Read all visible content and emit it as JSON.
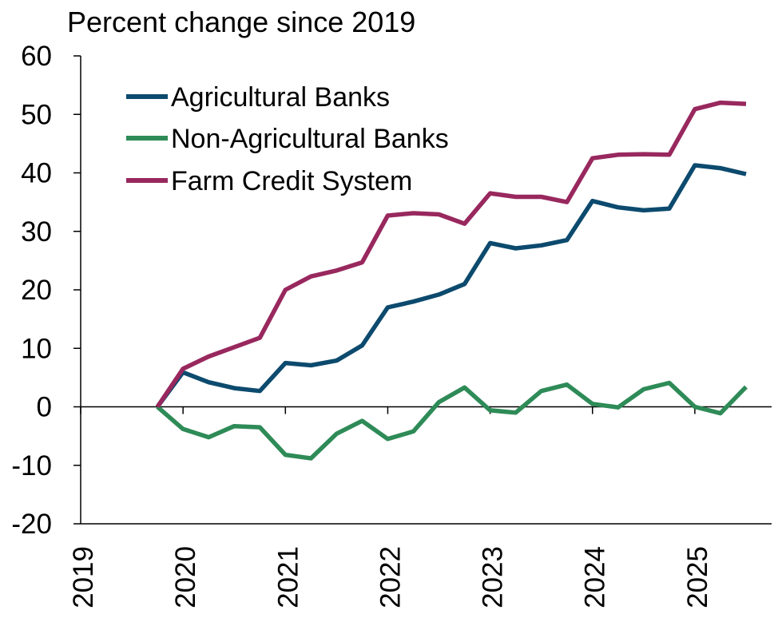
{
  "chart_data": {
    "type": "line",
    "title": "Percent change since 2019",
    "ylim": [
      -20,
      60
    ],
    "yticks": [
      -20,
      -10,
      0,
      10,
      20,
      30,
      40,
      50,
      60
    ],
    "xlim": [
      2019,
      2025.75
    ],
    "xticks": [
      "2019",
      "2020",
      "2021",
      "2022",
      "2023",
      "2024",
      "2025"
    ],
    "legend_position": "top-left",
    "grid": false,
    "x": [
      2019.75,
      2020.0,
      2020.25,
      2020.5,
      2020.75,
      2021.0,
      2021.25,
      2021.5,
      2021.75,
      2022.0,
      2022.25,
      2022.5,
      2022.75,
      2023.0,
      2023.25,
      2023.5,
      2023.75,
      2024.0,
      2024.25,
      2024.5,
      2024.75,
      2025.0,
      2025.25,
      2025.5
    ],
    "series": [
      {
        "name": "Agricultural Banks",
        "color": "#0c4a6e",
        "values": [
          0,
          5.9,
          4.2,
          3.2,
          2.7,
          7.5,
          7.1,
          7.9,
          10.5,
          17.0,
          18.0,
          19.2,
          21.0,
          28.0,
          27.1,
          27.6,
          28.5,
          35.2,
          34.1,
          33.6,
          33.9,
          41.3,
          40.8,
          39.8
        ]
      },
      {
        "name": "Non-Agricultural Banks",
        "color": "#2e8b57",
        "values": [
          0,
          -3.8,
          -5.2,
          -3.3,
          -3.5,
          -8.2,
          -8.8,
          -4.6,
          -2.4,
          -5.5,
          -4.2,
          0.8,
          3.3,
          -0.6,
          -1.0,
          2.7,
          3.8,
          0.5,
          -0.1,
          3.0,
          4.1,
          0.0,
          -1.1,
          3.4
        ]
      },
      {
        "name": "Farm Credit System",
        "color": "#98285e",
        "values": [
          0,
          6.5,
          8.6,
          10.2,
          11.8,
          20.0,
          22.3,
          23.3,
          24.7,
          32.7,
          33.1,
          32.9,
          31.3,
          36.5,
          35.9,
          35.9,
          35.0,
          42.5,
          43.1,
          43.2,
          43.1,
          50.9,
          52.0,
          51.8
        ]
      }
    ]
  }
}
